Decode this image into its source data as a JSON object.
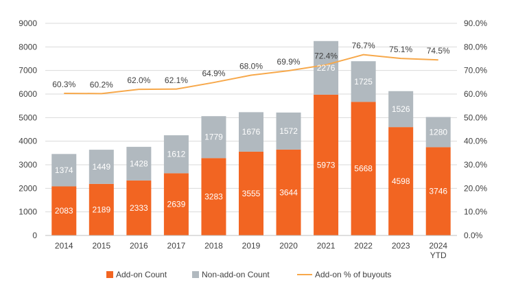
{
  "chart_data": {
    "type": "bar",
    "stacked": true,
    "categories": [
      "2014",
      "2015",
      "2016",
      "2017",
      "2018",
      "2019",
      "2020",
      "2021",
      "2022",
      "2023",
      "2024\nYTD"
    ],
    "series": [
      {
        "name": "Add-on Count",
        "type": "bar",
        "axis": "left",
        "color": "#f26522",
        "values": [
          2083,
          2189,
          2333,
          2639,
          3283,
          3555,
          3644,
          5973,
          5668,
          4598,
          3746
        ]
      },
      {
        "name": "Non-add-on Count",
        "type": "bar",
        "axis": "left",
        "color": "#b1b9bf",
        "values": [
          1374,
          1449,
          1428,
          1612,
          1779,
          1676,
          1572,
          2276,
          1725,
          1526,
          1280
        ]
      },
      {
        "name": "Add-on % of buyouts",
        "type": "line",
        "axis": "right",
        "color": "#f7a84a",
        "values": [
          60.3,
          60.2,
          62.0,
          62.1,
          64.9,
          68.0,
          69.9,
          72.4,
          76.7,
          75.1,
          74.5
        ]
      }
    ],
    "y_left": {
      "min": 0,
      "max": 9000,
      "step": 1000
    },
    "y_right": {
      "min": 0,
      "max": 90,
      "step": 10,
      "format": "percent_1dp"
    },
    "legend": {
      "position": "bottom"
    },
    "grid": true
  }
}
